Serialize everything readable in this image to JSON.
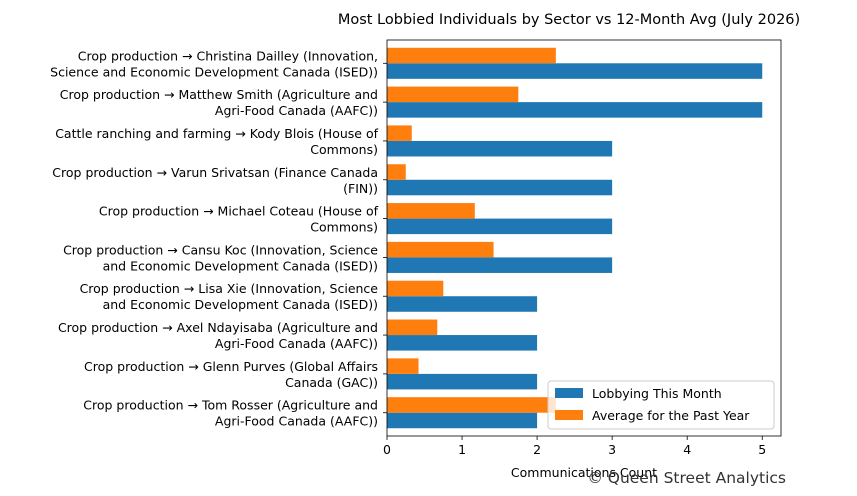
{
  "chart_data": {
    "type": "bar",
    "orientation": "horizontal",
    "title": "Most Lobbied Individuals by Sector vs 12-Month Avg (July 2026)",
    "xlabel": "Communications Count",
    "ylabel": "",
    "xlim": [
      0,
      5.25
    ],
    "xticks": [
      0,
      1,
      2,
      3,
      4,
      5
    ],
    "grid": false,
    "legend_position": "bottom-right",
    "categories": [
      [
        "Crop production → Christina Dailley (Innovation,",
        "Science and Economic Development Canada (ISED))"
      ],
      [
        "Crop production → Matthew Smith (Agriculture and",
        "Agri-Food Canada (AAFC))"
      ],
      [
        "Cattle ranching and farming → Kody Blois (House of",
        "Commons)"
      ],
      [
        "Crop production → Varun  Srivatsan (Finance Canada",
        "(FIN))"
      ],
      [
        "Crop production → Michael Coteau (House of",
        "Commons)"
      ],
      [
        "Crop production → Cansu Koc (Innovation, Science",
        "and Economic Development Canada (ISED))"
      ],
      [
        "Crop production → Lisa Xie (Innovation, Science",
        "and Economic Development Canada (ISED))"
      ],
      [
        "Crop production → Axel Ndayisaba (Agriculture and",
        "Agri-Food Canada (AAFC))"
      ],
      [
        "Crop production → Glenn Purves (Global Affairs",
        "Canada (GAC))"
      ],
      [
        "Crop production → Tom Rosser (Agriculture and",
        "Agri-Food Canada (AAFC))"
      ]
    ],
    "series": [
      {
        "name": "Lobbying This Month",
        "color": "#1f77b4",
        "values": [
          5,
          5,
          3,
          3,
          3,
          3,
          2,
          2,
          2,
          2
        ]
      },
      {
        "name": "Average for the Past Year",
        "color": "#ff7f0e",
        "values": [
          2.25,
          1.75,
          0.33,
          0.25,
          1.17,
          1.42,
          0.75,
          0.67,
          0.42,
          2.25
        ]
      }
    ]
  },
  "watermark": "© Queen Street Analytics"
}
